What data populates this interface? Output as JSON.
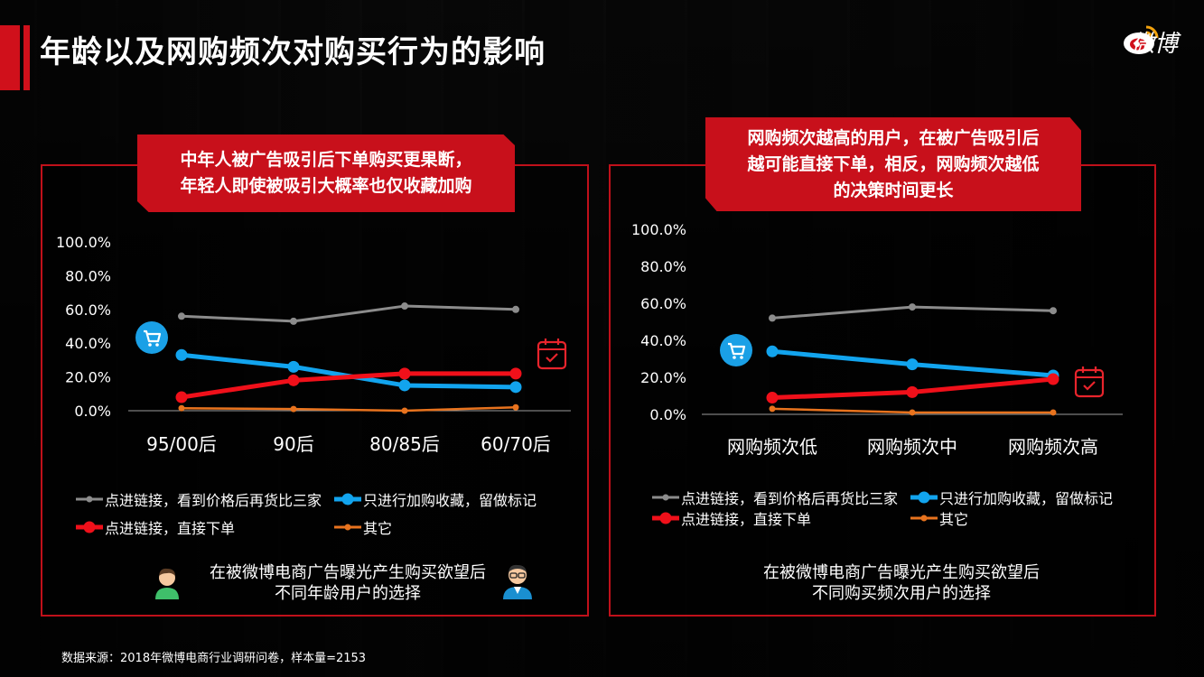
{
  "page": {
    "title": "年龄以及网购频次对购买行为的影响",
    "brand_text": "微博",
    "source": "数据来源：2018年微博电商行业调研问卷，样本量=2153",
    "accent_color": "#c8101b"
  },
  "left_panel": {
    "callout": [
      "中年人被广告吸引后下单购买更果断，",
      "年轻人即使被吸引大概率也仅收藏加购"
    ],
    "caption": [
      "在被微博电商广告曝光产生购买欲望后",
      "不同年龄用户的选择"
    ],
    "icons": [
      "cart-icon",
      "calendar-check-icon",
      "young-user-icon",
      "middle-aged-user-icon"
    ]
  },
  "right_panel": {
    "callout": [
      "网购频次越高的用户，在被广告吸引后",
      "越可能直接下单，相反，网购频次越低",
      "的决策时间更长"
    ],
    "caption": [
      "在被微博电商广告曝光产生购买欲望后",
      "不同购买频次用户的选择"
    ],
    "icons": [
      "cart-icon",
      "calendar-check-icon"
    ]
  },
  "legend": [
    {
      "label": "点进链接，看到价格后再货比三家",
      "color": "#8c8c8c"
    },
    {
      "label": "只进行加购收藏，留做标记",
      "color": "#12a4ee"
    },
    {
      "label": "点进链接，直接下单",
      "color": "#f0101a"
    },
    {
      "label": "其它",
      "color": "#e8731e"
    }
  ],
  "chart_data": [
    {
      "type": "line",
      "categories": [
        "95/00后",
        "90后",
        "80/85后",
        "60/70后"
      ],
      "y_ticks": [
        "100.0%",
        "80.0%",
        "60.0%",
        "40.0%",
        "20.0%",
        "0.0%"
      ],
      "ylim": [
        0,
        100
      ],
      "grid": false,
      "legend_position": "bottom",
      "series": [
        {
          "name": "点进链接，看到价格后再货比三家",
          "values": [
            56,
            53,
            62,
            60
          ]
        },
        {
          "name": "只进行加购收藏，留做标记",
          "values": [
            33,
            26,
            15,
            14
          ]
        },
        {
          "name": "点进链接，直接下单",
          "values": [
            8,
            18,
            22,
            22
          ]
        },
        {
          "name": "其它",
          "values": [
            1.5,
            1,
            0,
            2
          ]
        }
      ]
    },
    {
      "type": "line",
      "categories": [
        "网购频次低",
        "网购频次中",
        "网购频次高"
      ],
      "y_ticks": [
        "100.0%",
        "80.0%",
        "60.0%",
        "40.0%",
        "20.0%",
        "0.0%"
      ],
      "ylim": [
        0,
        100
      ],
      "grid": false,
      "legend_position": "bottom",
      "series": [
        {
          "name": "点进链接，看到价格后再货比三家",
          "values": [
            52,
            58,
            56
          ]
        },
        {
          "name": "只进行加购收藏，留做标记",
          "values": [
            34,
            27,
            21
          ]
        },
        {
          "name": "点进链接，直接下单",
          "values": [
            9,
            12,
            19
          ]
        },
        {
          "name": "其它",
          "values": [
            3,
            1,
            1
          ]
        }
      ]
    }
  ]
}
